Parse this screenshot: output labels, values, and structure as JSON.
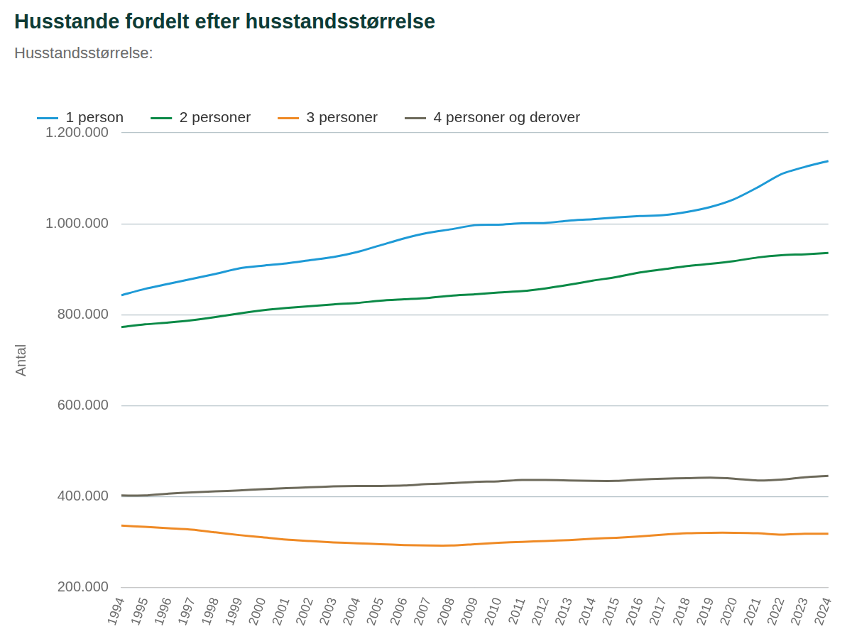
{
  "chart_data": {
    "type": "line",
    "title": "Husstande fordelt efter husstandsstørrelse",
    "subtitle": "Husstandsstørrelse:",
    "y_label": "Antal",
    "categories": [
      "1994",
      "1995",
      "1996",
      "1997",
      "1998",
      "1999",
      "2000",
      "2001",
      "2002",
      "2003",
      "2004",
      "2005",
      "2006",
      "2007",
      "2008",
      "2009",
      "2010",
      "2011",
      "2012",
      "2013",
      "2014",
      "2015",
      "2016",
      "2017",
      "2018",
      "2019",
      "2020",
      "2021",
      "2022",
      "2023",
      "2024"
    ],
    "series": [
      {
        "name": "1 person",
        "color": "#1e9ad6",
        "values": [
          843000,
          857000,
          868000,
          879000,
          890000,
          902000,
          908000,
          913000,
          920000,
          927000,
          938000,
          953000,
          968000,
          980000,
          988000,
          997000,
          998000,
          1001000,
          1002000,
          1007000,
          1010000,
          1014000,
          1017000,
          1019000,
          1026000,
          1037000,
          1054000,
          1080000,
          1109000,
          1125000,
          1138000
        ]
      },
      {
        "name": "2 personer",
        "color": "#0b8a47",
        "values": [
          773000,
          779000,
          783000,
          788000,
          795000,
          803000,
          810000,
          815000,
          819000,
          823000,
          826000,
          831000,
          834000,
          837000,
          842000,
          845000,
          849000,
          852000,
          858000,
          866000,
          875000,
          883000,
          893000,
          900000,
          907000,
          912000,
          918000,
          926000,
          931000,
          933000,
          936000
        ]
      },
      {
        "name": "3 personer",
        "color": "#ef8a25",
        "values": [
          337000,
          334000,
          331000,
          328000,
          322000,
          316000,
          311000,
          306000,
          303000,
          300000,
          298000,
          296000,
          294000,
          293000,
          293000,
          296000,
          299000,
          301000,
          303000,
          305000,
          308000,
          310000,
          313000,
          317000,
          320000,
          321000,
          321000,
          320000,
          317000,
          319000,
          319000
        ]
      },
      {
        "name": "4 personer og derover",
        "color": "#6d6a5b",
        "values": [
          403000,
          403000,
          407000,
          410000,
          412000,
          414000,
          417000,
          419000,
          421000,
          423000,
          424000,
          424000,
          425000,
          428000,
          430000,
          433000,
          434000,
          437000,
          437000,
          436000,
          435000,
          435000,
          438000,
          440000,
          441000,
          442000,
          440000,
          436000,
          438000,
          443000,
          446000
        ]
      }
    ],
    "ylim": [
      200000,
      1200000
    ],
    "yticks": [
      {
        "value": 200000,
        "label": "200.000"
      },
      {
        "value": 400000,
        "label": "400.000"
      },
      {
        "value": 600000,
        "label": "600.000"
      },
      {
        "value": 800000,
        "label": "800.000"
      },
      {
        "value": 1000000,
        "label": "1.000.000"
      },
      {
        "value": 1200000,
        "label": "1.200.000"
      }
    ],
    "grid": true,
    "legend": "top"
  }
}
